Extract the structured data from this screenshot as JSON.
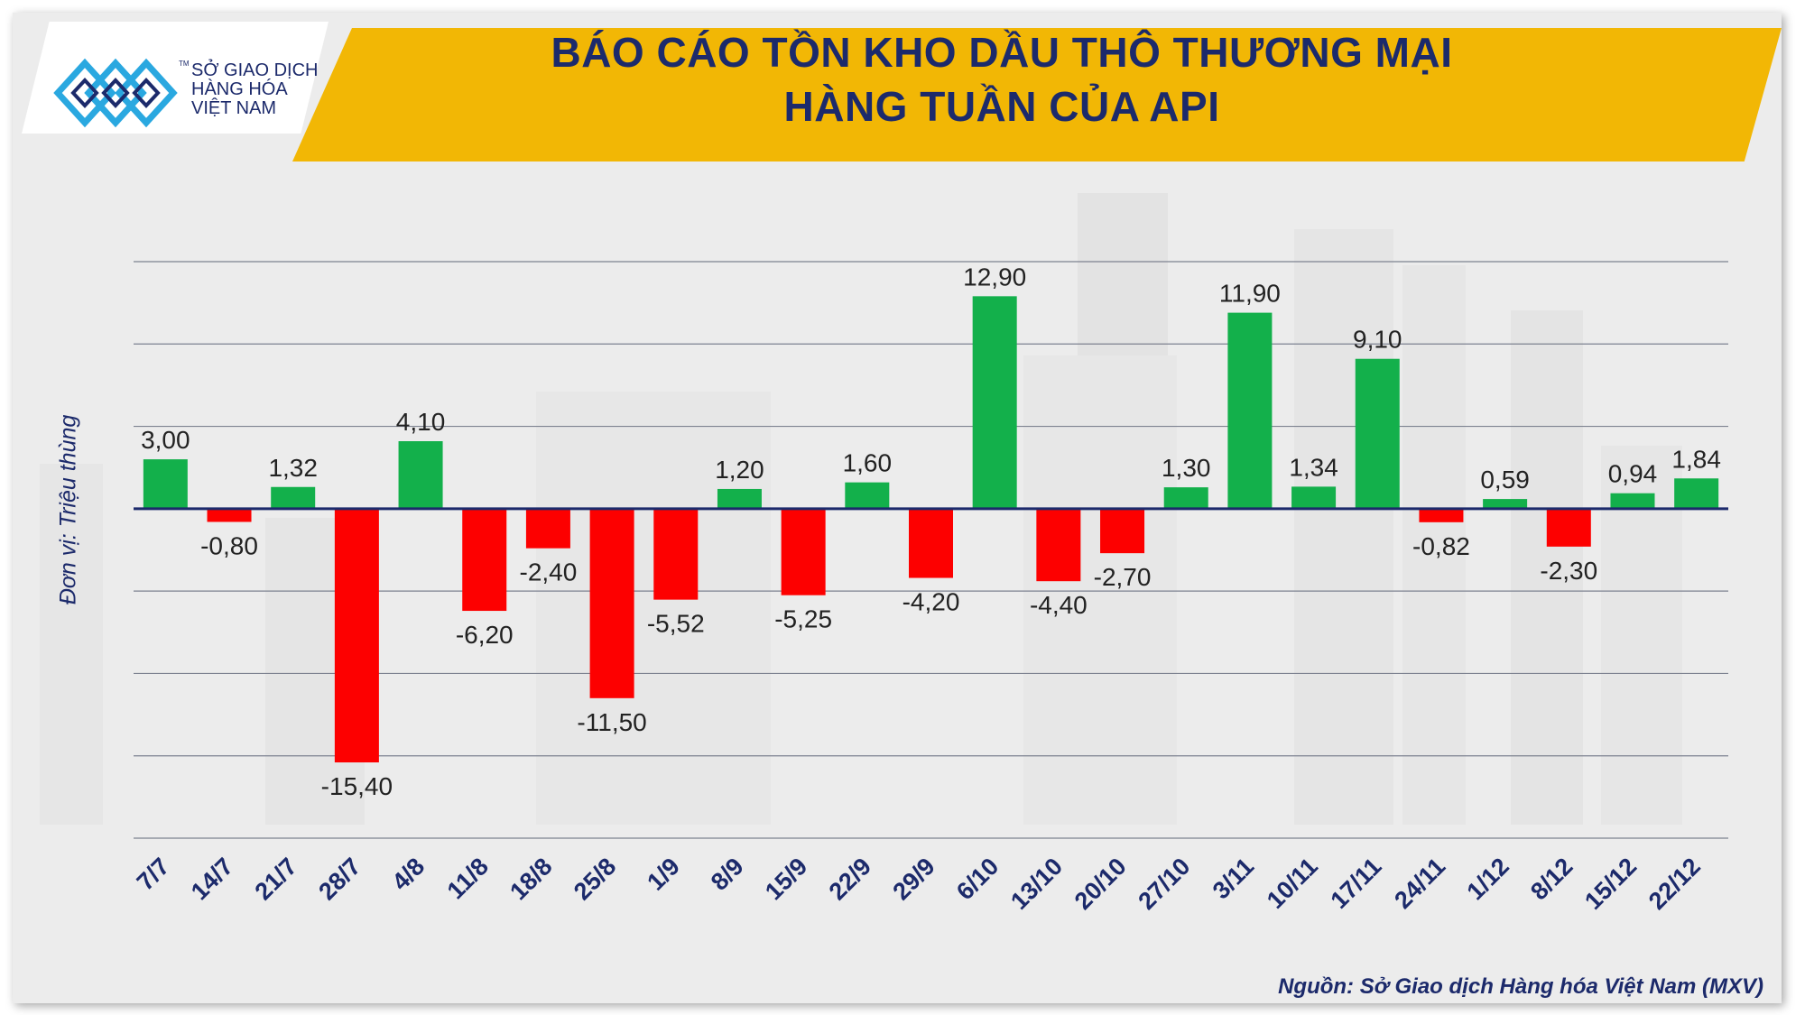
{
  "logo": {
    "line1": "SỞ GIAO DỊCH",
    "line2": "HÀNG HÓA",
    "line3": "VIỆT NAM",
    "tm": "TM"
  },
  "header": {
    "title_line1": "BÁO CÁO TỒN KHO DẦU THÔ THƯƠNG MẠI",
    "title_line2": "HÀNG TUẦN CỦA API"
  },
  "footer": {
    "source": "Nguồn: Sở Giao dịch Hàng hóa Việt Nam (MXV)"
  },
  "colors": {
    "positive": "#13b04b",
    "negative": "#fd0000",
    "title_band": "#f2b705",
    "navy": "#1c2a6b",
    "logo_blue": "#2aa8e0"
  },
  "chart_data": {
    "type": "bar",
    "title": "BÁO CÁO TỒN KHO DẦU THÔ THƯƠNG MẠI HÀNG TUẦN CỦA API",
    "ylabel": "Đơn vị: Triệu thùng",
    "xlabel": "",
    "ylim": [
      -20,
      15
    ],
    "grid": true,
    "categories": [
      "7/7",
      "14/7",
      "21/7",
      "28/7",
      "4/8",
      "11/8",
      "18/8",
      "25/8",
      "1/9",
      "8/9",
      "15/9",
      "22/9",
      "29/9",
      "6/10",
      "13/10",
      "20/10",
      "27/10",
      "3/11",
      "10/11",
      "17/11",
      "24/11",
      "1/12",
      "8/12",
      "15/12",
      "22/12"
    ],
    "values": [
      3.0,
      -0.8,
      1.32,
      -15.4,
      4.1,
      -6.2,
      -2.4,
      -11.5,
      -5.52,
      1.2,
      -5.25,
      1.6,
      -4.2,
      12.9,
      -4.4,
      -2.7,
      1.3,
      11.9,
      1.34,
      9.1,
      -0.82,
      0.59,
      -2.3,
      0.94,
      1.84
    ],
    "labels": [
      "3,00",
      "-0,80",
      "1,32",
      "-15,40",
      "4,10",
      "-6,20",
      "-2,40",
      "-11,50",
      "-5,52",
      "1,20",
      "-5,25",
      "1,60",
      "-4,20",
      "12,90",
      "-4,40",
      "-2,70",
      "1,30",
      "11,90",
      "1,34",
      "9,10",
      "-0,82",
      "0,59",
      "-2,30",
      "0,94",
      "1,84"
    ]
  }
}
